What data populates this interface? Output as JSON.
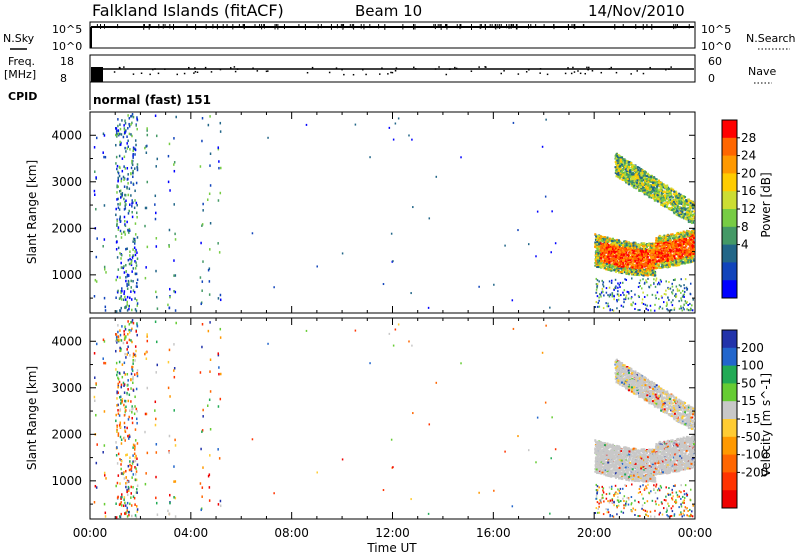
{
  "header": {
    "station": "Falkland Islands (fitACF)",
    "beam": "Beam 10",
    "date": "14/Nov/2010"
  },
  "strips": {
    "nsky": {
      "label": "N.Sky",
      "tick_top": "10^5",
      "tick_bottom": "10^0"
    },
    "nsearch": {
      "label": "N.Search",
      "tick_top": "10^5",
      "tick_bottom": "10^0"
    },
    "freq": {
      "label_line1": "Freq.",
      "label_line2": "[MHz]",
      "tick_top": "18",
      "tick_bottom": "8"
    },
    "nave": {
      "label": "Nave",
      "tick_top": "60",
      "tick_bottom": "0"
    },
    "cpid": {
      "label": "CPID",
      "value": "normal (fast) 151"
    }
  },
  "chart_data": [
    {
      "type": "heatmap",
      "title": "",
      "ylabel": "Slant Range [km]",
      "xlabel": "",
      "ylim": [
        180,
        4500
      ],
      "yticks": [
        "4000",
        "3000",
        "2000",
        "1000"
      ],
      "colorbar": {
        "label": "Power [dB]",
        "ticks": [
          "28",
          "24",
          "20",
          "16",
          "12",
          "8",
          "4"
        ],
        "colors": [
          "#ff0000",
          "#ff6600",
          "#ff9900",
          "#ffcc00",
          "#ccdd33",
          "#77cc44",
          "#449966",
          "#226688",
          "#1144bb",
          "#0000ff"
        ]
      },
      "features": [
        {
          "x_range": [
            "20:00",
            "24:00"
          ],
          "range_km": [
            1100,
            1800
          ],
          "value": "20-28 dB"
        },
        {
          "x_range": [
            "20:00",
            "24:00"
          ],
          "range_km": [
            2000,
            3400
          ],
          "value": "8-20 dB"
        },
        {
          "x_range": [
            "01:00",
            "02:00"
          ],
          "range_km": [
            200,
            4500
          ],
          "value": "4-12 dB scattered"
        }
      ]
    },
    {
      "type": "heatmap",
      "title": "",
      "ylabel": "Slant Range [km]",
      "xlabel": "Time UT",
      "ylim": [
        180,
        4500
      ],
      "yticks": [
        "4000",
        "3000",
        "2000",
        "1000"
      ],
      "xticks": [
        "00:00",
        "04:00",
        "08:00",
        "12:00",
        "16:00",
        "20:00",
        "00:00"
      ],
      "colorbar": {
        "label": "Velocity [m s^-1]",
        "ticks": [
          "200",
          "100",
          "50",
          "15",
          "-15",
          "-50",
          "-100",
          "-200"
        ],
        "colors": [
          "#2233aa",
          "#2266cc",
          "#22aa55",
          "#66cc33",
          "#c8c8c8",
          "#ffcc33",
          "#ff9900",
          "#ff6600",
          "#ff3300",
          "#ee0000"
        ]
      },
      "features": [
        {
          "x_range": [
            "20:00",
            "24:00"
          ],
          "range_km": [
            1100,
            1900
          ],
          "value": "-15 to 15 m/s"
        },
        {
          "x_range": [
            "21:00",
            "24:00"
          ],
          "range_km": [
            2300,
            3400
          ],
          "value": "-15 to 15 m/s"
        }
      ]
    }
  ]
}
